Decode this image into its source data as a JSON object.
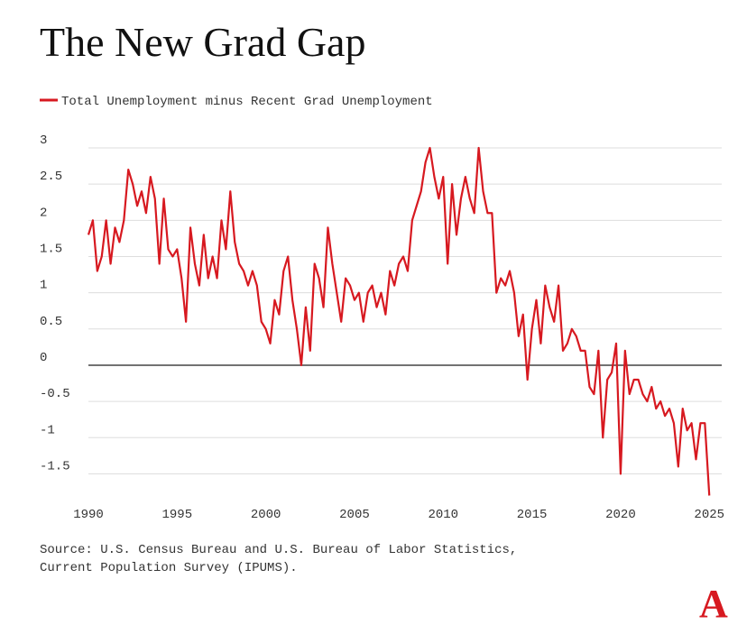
{
  "chart_data": {
    "type": "line",
    "title": "The New Grad Gap",
    "source": "Source: U.S. Census Bureau and U.S. Bureau of Labor Statistics, Current Population Survey (IPUMS).",
    "logo": "A",
    "xlim": [
      1990,
      2025.7
    ],
    "xticks": [
      1990,
      1995,
      2000,
      2005,
      2010,
      2015,
      2020,
      2025
    ],
    "ylim": [
      -1.8,
      3
    ],
    "yticks": [
      3,
      2.5,
      2,
      1.5,
      1,
      0.5,
      0,
      -0.5,
      -1,
      -1.5
    ],
    "grid": true,
    "x": [
      1990,
      1990.25,
      1990.5,
      1990.75,
      1991,
      1991.25,
      1991.5,
      1991.75,
      1992,
      1992.25,
      1992.5,
      1992.75,
      1993,
      1993.25,
      1993.5,
      1993.75,
      1994,
      1994.25,
      1994.5,
      1994.75,
      1995,
      1995.25,
      1995.5,
      1995.75,
      1996,
      1996.25,
      1996.5,
      1996.75,
      1997,
      1997.25,
      1997.5,
      1997.75,
      1998,
      1998.25,
      1998.5,
      1998.75,
      1999,
      1999.25,
      1999.5,
      1999.75,
      2000,
      2000.25,
      2000.5,
      2000.75,
      2001,
      2001.25,
      2001.5,
      2001.75,
      2002,
      2002.25,
      2002.5,
      2002.75,
      2003,
      2003.25,
      2003.5,
      2003.75,
      2004,
      2004.25,
      2004.5,
      2004.75,
      2005,
      2005.25,
      2005.5,
      2005.75,
      2006,
      2006.25,
      2006.5,
      2006.75,
      2007,
      2007.25,
      2007.5,
      2007.75,
      2008,
      2008.25,
      2008.5,
      2008.75,
      2009,
      2009.25,
      2009.5,
      2009.75,
      2010,
      2010.25,
      2010.5,
      2010.75,
      2011,
      2011.25,
      2011.5,
      2011.75,
      2012,
      2012.25,
      2012.5,
      2012.75,
      2013,
      2013.25,
      2013.5,
      2013.75,
      2014,
      2014.25,
      2014.5,
      2014.75,
      2015,
      2015.25,
      2015.5,
      2015.75,
      2016,
      2016.25,
      2016.5,
      2016.75,
      2017,
      2017.25,
      2017.5,
      2017.75,
      2018,
      2018.25,
      2018.5,
      2018.75,
      2019,
      2019.25,
      2019.5,
      2019.75,
      2020,
      2020.25,
      2020.5,
      2020.75,
      2021,
      2021.25,
      2021.5,
      2021.75,
      2022,
      2022.25,
      2022.5,
      2022.75,
      2023,
      2023.25,
      2023.5,
      2023.75,
      2024,
      2024.25,
      2024.5,
      2024.75,
      2025
    ],
    "series": [
      {
        "name": "Total Unemployment minus Recent Grad Unemployment",
        "color": "#d71920",
        "values": [
          1.8,
          2.0,
          1.3,
          1.5,
          2.0,
          1.4,
          1.9,
          1.7,
          2.0,
          2.7,
          2.5,
          2.2,
          2.4,
          2.1,
          2.6,
          2.3,
          1.4,
          2.3,
          1.6,
          1.5,
          1.6,
          1.2,
          0.6,
          1.9,
          1.4,
          1.1,
          1.8,
          1.2,
          1.5,
          1.2,
          2.0,
          1.6,
          2.4,
          1.7,
          1.4,
          1.3,
          1.1,
          1.3,
          1.1,
          0.6,
          0.5,
          0.3,
          0.9,
          0.7,
          1.3,
          1.5,
          0.9,
          0.5,
          0.0,
          0.8,
          0.2,
          1.4,
          1.2,
          0.8,
          1.9,
          1.4,
          1.0,
          0.6,
          1.2,
          1.1,
          0.9,
          1.0,
          0.6,
          1.0,
          1.1,
          0.8,
          1.0,
          0.7,
          1.3,
          1.1,
          1.4,
          1.5,
          1.3,
          2.0,
          2.2,
          2.4,
          2.8,
          3.0,
          2.6,
          2.3,
          2.6,
          1.4,
          2.5,
          1.8,
          2.3,
          2.6,
          2.3,
          2.1,
          3.0,
          2.4,
          2.1,
          2.1,
          1.0,
          1.2,
          1.1,
          1.3,
          1.0,
          0.4,
          0.7,
          -0.2,
          0.5,
          0.9,
          0.3,
          1.1,
          0.8,
          0.6,
          1.1,
          0.2,
          0.3,
          0.5,
          0.4,
          0.2,
          0.2,
          -0.3,
          -0.4,
          0.2,
          -1.0,
          -0.2,
          -0.1,
          0.3,
          -1.5,
          0.2,
          -0.4,
          -0.2,
          -0.2,
          -0.4,
          -0.5,
          -0.3,
          -0.6,
          -0.5,
          -0.7,
          -0.6,
          -0.8,
          -1.4,
          -0.6,
          -0.9,
          -0.8,
          -1.3,
          -0.8,
          -0.8,
          -1.8
        ]
      }
    ]
  }
}
